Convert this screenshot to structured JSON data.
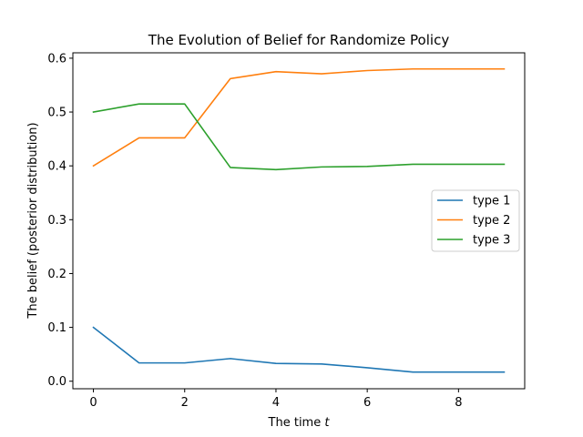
{
  "chart_data": {
    "type": "line",
    "title": "The Evolution of Belief for Randomize Policy",
    "xlabel_prefix": "The time ",
    "xlabel_var": "t",
    "ylabel": "The belief (posterior distribution)",
    "x": [
      0,
      1,
      2,
      3,
      4,
      5,
      6,
      7,
      8,
      9
    ],
    "xlim": [
      -0.45,
      9.45
    ],
    "ylim": [
      -0.014,
      0.61
    ],
    "xticks": [
      0,
      2,
      4,
      6,
      8
    ],
    "yticks": [
      0.0,
      0.1,
      0.2,
      0.3,
      0.4,
      0.5,
      0.6
    ],
    "ytick_labels": [
      "0.0",
      "0.1",
      "0.2",
      "0.3",
      "0.4",
      "0.5",
      "0.6"
    ],
    "legend_position": "center-right",
    "grid": false,
    "series": [
      {
        "name": "type 1",
        "color": "#1f77b4",
        "values": [
          0.1,
          0.034,
          0.034,
          0.042,
          0.033,
          0.032,
          0.025,
          0.017,
          0.017,
          0.017
        ]
      },
      {
        "name": "type 2",
        "color": "#ff7f0e",
        "values": [
          0.4,
          0.452,
          0.452,
          0.562,
          0.575,
          0.571,
          0.577,
          0.58,
          0.58,
          0.58
        ]
      },
      {
        "name": "type 3",
        "color": "#2ca02c",
        "values": [
          0.5,
          0.515,
          0.515,
          0.397,
          0.393,
          0.398,
          0.399,
          0.403,
          0.403,
          0.403
        ]
      }
    ]
  }
}
